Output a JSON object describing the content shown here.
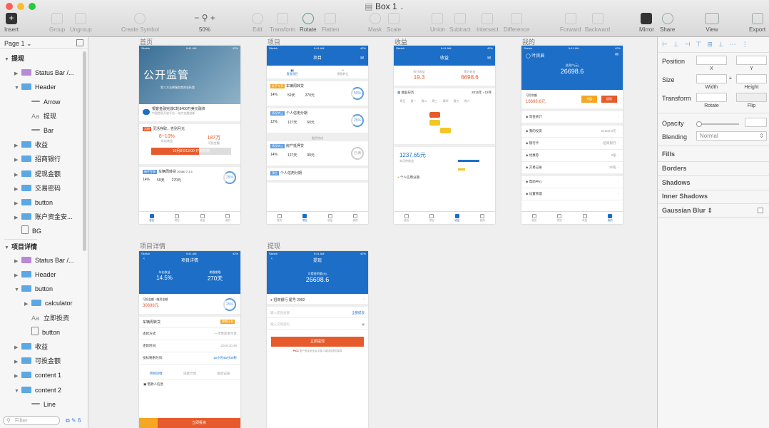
{
  "window": {
    "title": "Box 1"
  },
  "toolbar": {
    "insert": "Insert",
    "group": "Group",
    "ungroup": "Ungroup",
    "create_symbol": "Create Symbol",
    "zoom": "50%",
    "edit": "Edit",
    "transform": "Transform",
    "rotate": "Rotate",
    "flatten": "Flatten",
    "mask": "Mask",
    "scale": "Scale",
    "union": "Union",
    "subtract": "Subtract",
    "intersect": "Intersect",
    "difference": "Difference",
    "forward": "Forward",
    "backward": "Backward",
    "mirror": "Mirror",
    "share": "Share",
    "view": "View",
    "export": "Export"
  },
  "layers": {
    "page": "Page 1",
    "items": [
      {
        "label": "提现",
        "kind": "group-top"
      },
      {
        "label": "Status Bar /...",
        "kind": "folder-purple"
      },
      {
        "label": "Header",
        "kind": "folder"
      },
      {
        "label": "Arrow",
        "kind": "shape"
      },
      {
        "label": "提现",
        "kind": "text"
      },
      {
        "label": "Bar",
        "kind": "line"
      },
      {
        "label": "收益",
        "kind": "folder"
      },
      {
        "label": "招商银行",
        "kind": "folder"
      },
      {
        "label": "提现金额",
        "kind": "folder"
      },
      {
        "label": "交易密码",
        "kind": "folder"
      },
      {
        "label": "button",
        "kind": "folder"
      },
      {
        "label": "账户资金安...",
        "kind": "folder"
      },
      {
        "label": "BG",
        "kind": "rect"
      },
      {
        "label": "项目详情",
        "kind": "group-top"
      },
      {
        "label": "Status Bar /...",
        "kind": "folder-purple"
      },
      {
        "label": "Header",
        "kind": "folder"
      },
      {
        "label": "button",
        "kind": "folder"
      },
      {
        "label": "calculator",
        "kind": "folder"
      },
      {
        "label": "立即投资",
        "kind": "text"
      },
      {
        "label": "button",
        "kind": "rect"
      },
      {
        "label": "收益",
        "kind": "folder"
      },
      {
        "label": "可投金额",
        "kind": "folder"
      },
      {
        "label": "content 1",
        "kind": "folder"
      },
      {
        "label": "content 2",
        "kind": "folder"
      },
      {
        "label": "Line",
        "kind": "line"
      }
    ],
    "filter_placeholder": "Filter",
    "badge": "6"
  },
  "artboards": {
    "home": "首页",
    "project": "项目",
    "income": "收益",
    "mine": "我的",
    "detail": "项目详情",
    "withdraw": "提现"
  },
  "screens": {
    "carrier": "Sketch",
    "time": "9:41 AM",
    "battery": "42%",
    "tabs": [
      "首页",
      "项目",
      "收益",
      "我的"
    ],
    "home": {
      "hero_title": "公开监管",
      "hero_sub": "第三方法律服务商资金托管",
      "notice": "银客金融完成C轮8400万美元融资",
      "notice_sub": "中国首家开放平台... 助力金融创新",
      "tag1": "活期",
      "line1": "灵活存取，告别月光",
      "rate": "8~10%",
      "rate_label": "年化收益",
      "amount": "187万",
      "amount_label": "可投金额",
      "cta": "10月8日13:00 开放抢购",
      "tag2": "新手专享",
      "item": "车辆周转贷",
      "item_no": "20180 7-1-1",
      "r1": "14%",
      "r2": "59天",
      "r3": "270元",
      "ring": "25%"
    },
    "project": {
      "title": "项目",
      "sub1": "直投项目",
      "sub2": "债权转让",
      "items": [
        {
          "tag": "新手专享",
          "name": "车辆周转贷",
          "r1": "14%",
          "r2": "59天",
          "r3": "270元",
          "ring": "50%"
        },
        {
          "tag": "债权转让",
          "name": "个人信用分期",
          "r1": "12%",
          "r2": "127天",
          "r3": "60元",
          "ring": "25%"
        },
        {
          "tag": "债权转让",
          "name": "房产抵押贷",
          "r1": "14%",
          "r2": "127天",
          "r3": "90元",
          "ring": "已满"
        },
        {
          "tag": "预告",
          "name": "个人信用分期",
          "r1": "",
          "r2": "",
          "r3": "",
          "ring": ""
        }
      ],
      "divider": "融资完成"
    },
    "income": {
      "title": "收益",
      "l1": "昨日收益",
      "v1": "19.3",
      "l2": "累计收益",
      "v2": "6698.6",
      "cal": "收益日历",
      "year": "2015年",
      "month": "12月",
      "weekdays": [
        "周日",
        "周一",
        "周二",
        "周三",
        "周四",
        "周五",
        "周六"
      ],
      "pending": "1237.65元",
      "pending_label": "本月待收益",
      "foot": "个人信用分期"
    },
    "mine": {
      "name": "叶良辰",
      "total_label": "总资产(元)",
      "total": "26698.6",
      "avail_label": "可用余额",
      "avail": "16698.6元",
      "recharge": "充值",
      "withdraw": "提现",
      "menu": [
        {
          "label": "资金统计",
          "value": ""
        },
        {
          "label": "我的投资",
          "value": "21002.6元"
        },
        {
          "label": "银行卡",
          "value": "招商银行"
        },
        {
          "label": "优惠券",
          "value": "3张"
        },
        {
          "label": "交易记录",
          "value": "25笔"
        },
        {
          "label": "帮助中心",
          "value": ""
        },
        {
          "label": "设置管理",
          "value": ""
        }
      ]
    },
    "detail": {
      "title": "项目详情",
      "l1": "年化收益",
      "v1": "14.5%",
      "l2": "期限期限",
      "v2": "270天",
      "avail_label": "可投金额 / 融资金额",
      "avail": "30698元",
      "ring": "25%",
      "name": "车辆周转贷",
      "badge": "按期计息",
      "rows": [
        {
          "label": "还款方式:",
          "value": "一次性还本付息"
        },
        {
          "label": "还款时间:",
          "value": "2016.10.26"
        },
        {
          "label": "投标剩余时间:",
          "value": "16小时45分30秒"
        }
      ],
      "tabs": [
        "项目详情",
        "还款计划",
        "投资记录"
      ],
      "info": "借款人信息",
      "cta": "立即投资"
    },
    "withdraw": {
      "title": "提现",
      "avail_label": "可提现余额(元)",
      "avail": "26698.6",
      "bank": "招商银行",
      "tail": "尾号 2992",
      "amount_placeholder": "输入提现金额",
      "all": "全部提现",
      "pwd_placeholder": "输入交易密码",
      "cta": "立即提现",
      "note": "账户资金安全由中国人保财险提供保障"
    }
  },
  "inspector": {
    "position": "Position",
    "x": "X",
    "y": "Y",
    "size": "Size",
    "width": "Width",
    "height": "Height",
    "transform": "Transform",
    "rotate": "Rotate",
    "flip": "Flip",
    "opacity": "Opacity",
    "blending": "Blending",
    "blend_mode": "Normal",
    "fills": "Fills",
    "borders": "Borders",
    "shadows": "Shadows",
    "inner_shadows": "Inner Shadows",
    "gaussian_blur": "Gaussian Blur"
  }
}
